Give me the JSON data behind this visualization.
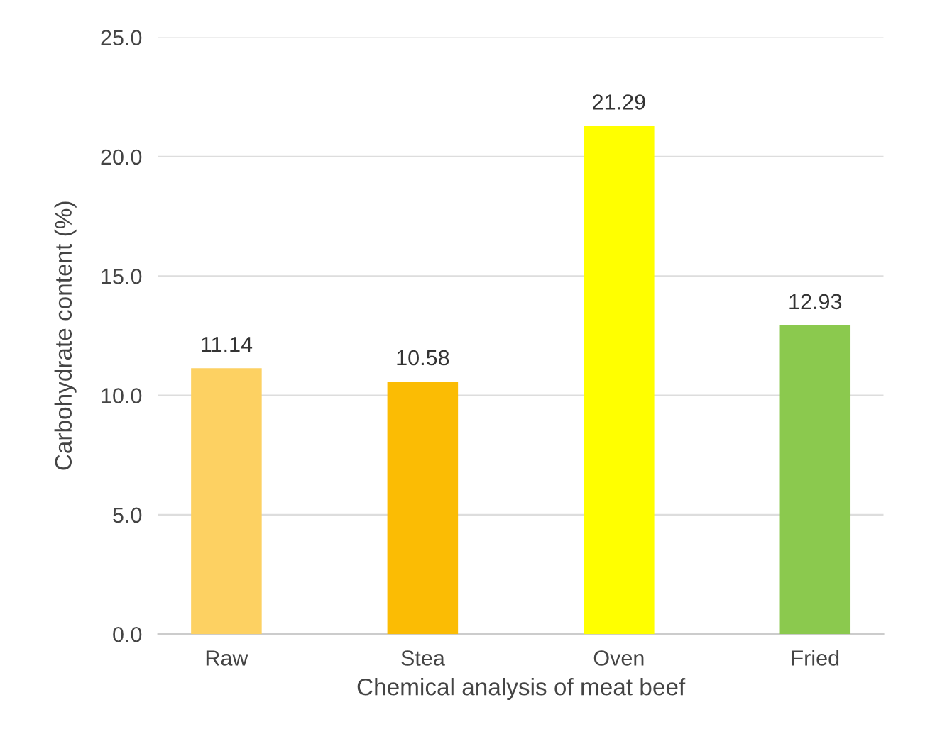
{
  "chart_data": {
    "type": "bar",
    "xlabel": "Chemical analysis of meat beef",
    "ylabel": "Carbohydrate content (%)",
    "categories": [
      "Raw",
      "Stea",
      "Oven",
      "Fried"
    ],
    "values": [
      11.14,
      10.58,
      21.29,
      12.93
    ],
    "colors": [
      "#fdd162",
      "#fbbc04",
      "#ffff00",
      "#8bc94e"
    ],
    "ylim": [
      0,
      25
    ],
    "yticks": [
      {
        "value": 0,
        "label": "0.0"
      },
      {
        "value": 5,
        "label": "5.0"
      },
      {
        "value": 10,
        "label": "10.0"
      },
      {
        "value": 15,
        "label": "15.0"
      },
      {
        "value": 20,
        "label": "20.0"
      },
      {
        "value": 25,
        "label": "25.0"
      }
    ],
    "grid": "y",
    "data_labels": true
  }
}
